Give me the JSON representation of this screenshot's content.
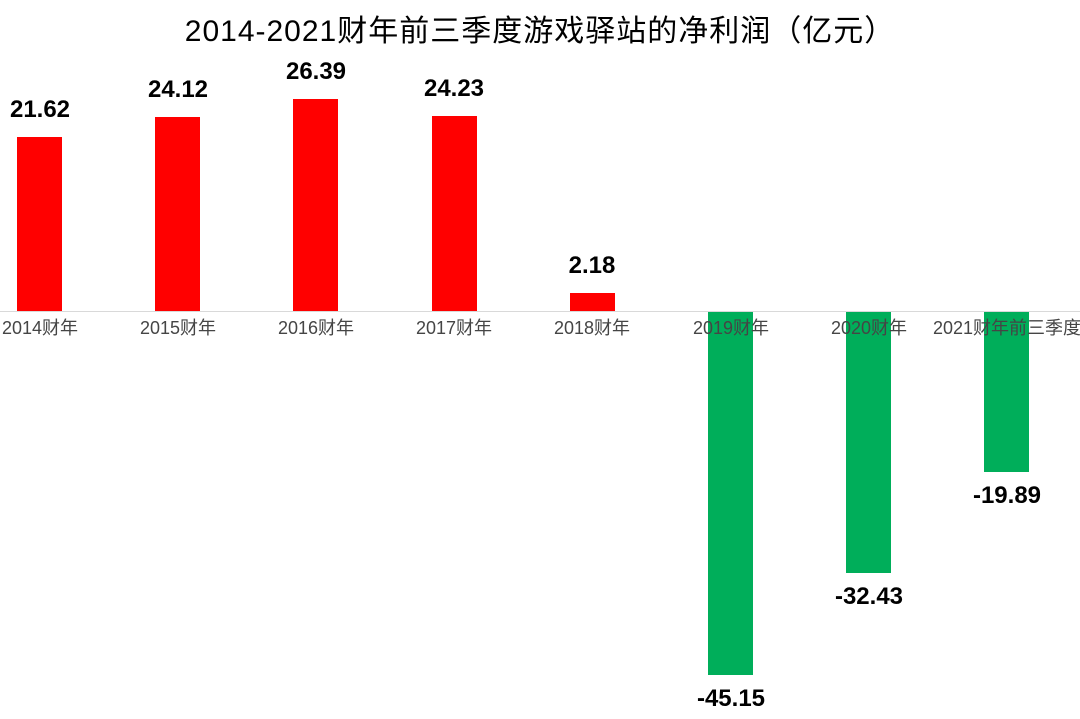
{
  "chart_data": {
    "type": "bar",
    "title": "2014-2021财年前三季度游戏驿站的净利润（亿元）",
    "categories": [
      "2014财年",
      "2015财年",
      "2016财年",
      "2017财年",
      "2018财年",
      "2019财年",
      "2020财年",
      "2021财年前三季度"
    ],
    "values": [
      21.62,
      24.12,
      26.39,
      24.23,
      2.18,
      -45.15,
      -32.43,
      -19.89
    ],
    "value_labels": [
      "21.62",
      "24.12",
      "26.39",
      "24.23",
      "2.18",
      "-45.15",
      "-32.43",
      "-19.89"
    ],
    "xlabel": "",
    "ylabel": "",
    "ylim": [
      -50,
      38
    ],
    "grid": false,
    "legend": false,
    "colors": {
      "positive_bar": "#ff0000",
      "negative_bar": "#00ae5a",
      "axis_line": "#d9d9d9",
      "category_label": "#454545",
      "value_label": "#000000",
      "title": "#000000",
      "background": "#ffffff"
    }
  }
}
